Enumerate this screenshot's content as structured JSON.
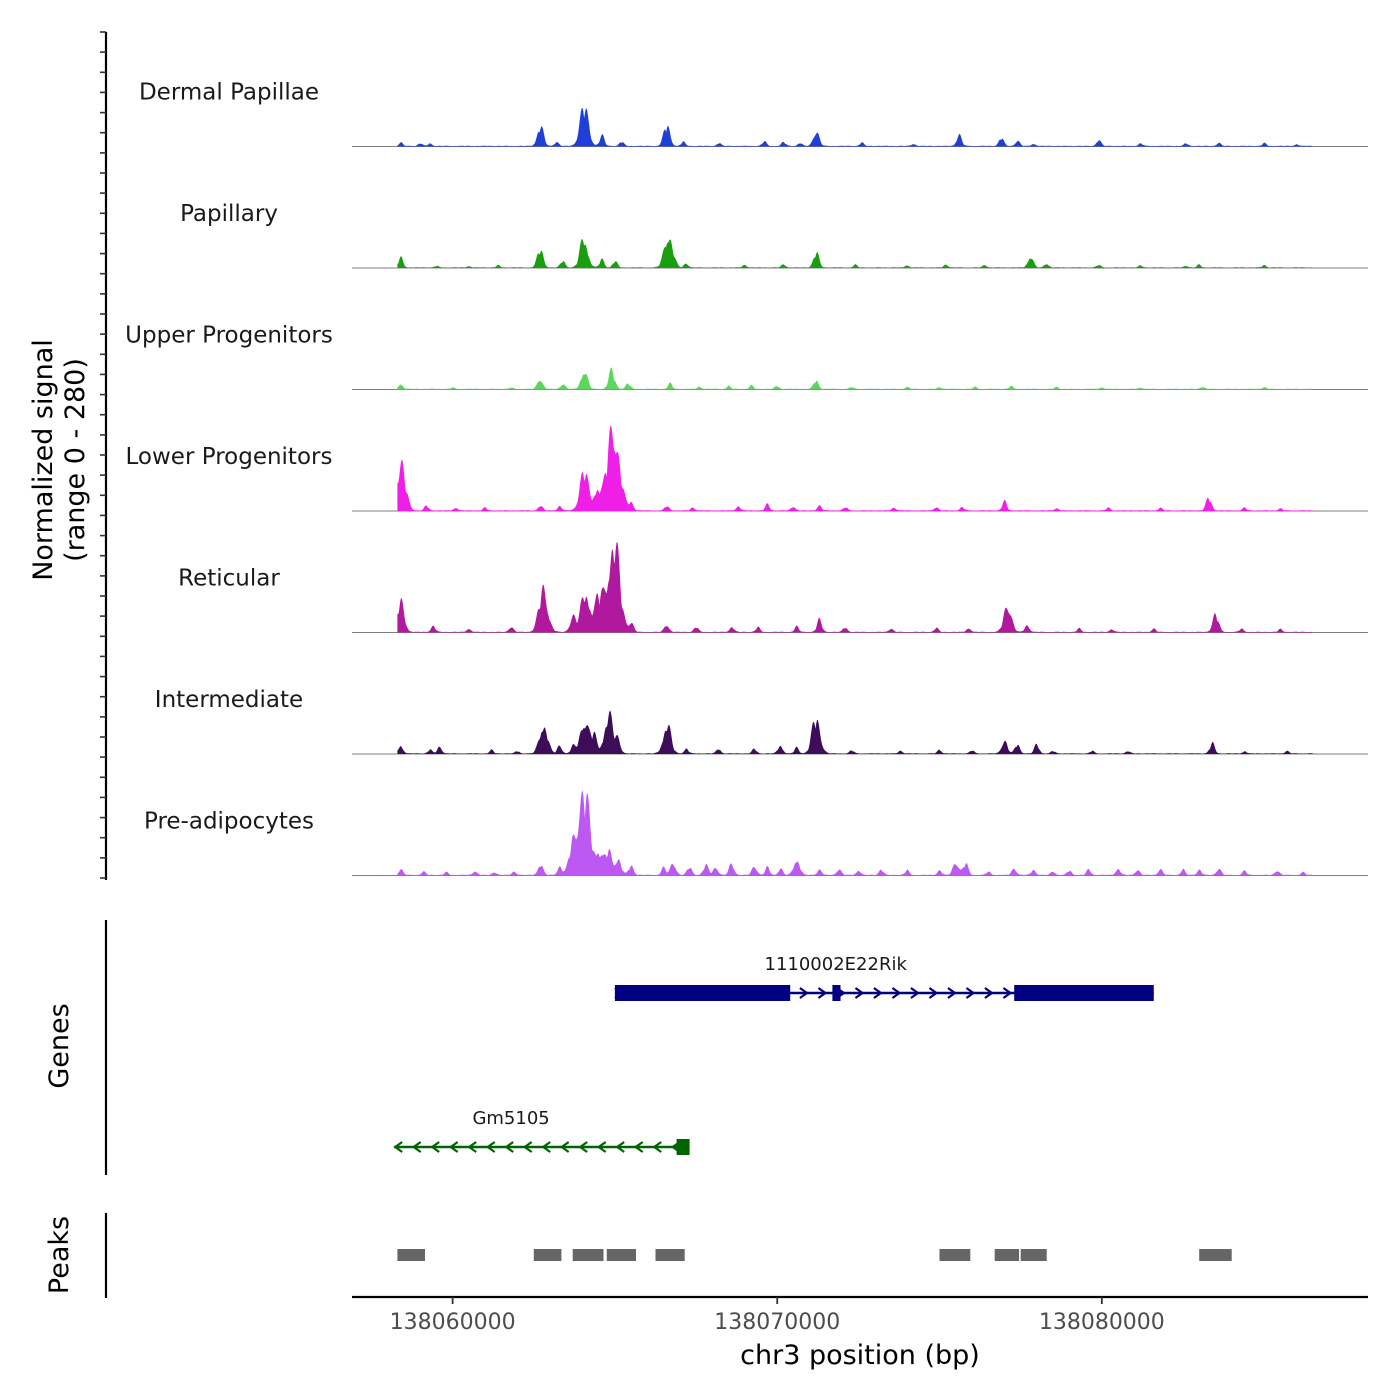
{
  "chart_data": {
    "type": "area",
    "title": "",
    "chromosome": "chr3",
    "xlabel": "chr3 position (bp)",
    "ylabel_line1": "Normalized signal",
    "ylabel_line2": "(range 0 - 280)",
    "ylim": [
      0,
      280
    ],
    "xlim": [
      138056900,
      138088200
    ],
    "x_ticks": [
      {
        "value": 138060000,
        "label": "138060000"
      },
      {
        "value": 138070000,
        "label": "138070000"
      },
      {
        "value": 138080000,
        "label": "138080000"
      }
    ],
    "track_range": [
      138058300,
      138086500
    ],
    "baseline": 2,
    "series": [
      {
        "name": "Dermal Papillae",
        "color": "#1f3fd6",
        "peaks": [
          [
            138058400,
            10
          ],
          [
            138059000,
            9
          ],
          [
            138059300,
            8
          ],
          [
            138062700,
            62
          ],
          [
            138063200,
            14
          ],
          [
            138064050,
            120
          ],
          [
            138064600,
            30
          ],
          [
            138065200,
            14
          ],
          [
            138066600,
            64
          ],
          [
            138067100,
            12
          ],
          [
            138068200,
            10
          ],
          [
            138069600,
            14
          ],
          [
            138070200,
            12
          ],
          [
            138070700,
            10
          ],
          [
            138071200,
            50
          ],
          [
            138072600,
            10
          ],
          [
            138074200,
            8
          ],
          [
            138075600,
            35
          ],
          [
            138076900,
            26
          ],
          [
            138077400,
            18
          ],
          [
            138077900,
            8
          ],
          [
            138079900,
            20
          ],
          [
            138081200,
            8
          ],
          [
            138082600,
            8
          ],
          [
            138083600,
            10
          ],
          [
            138085000,
            8
          ],
          [
            138086000,
            6
          ]
        ]
      },
      {
        "name": "Papillary",
        "color": "#1a9e10",
        "peaks": [
          [
            138058400,
            30
          ],
          [
            138059500,
            5
          ],
          [
            138060500,
            5
          ],
          [
            138061400,
            6
          ],
          [
            138062700,
            55
          ],
          [
            138063400,
            22
          ],
          [
            138064050,
            95
          ],
          [
            138064600,
            25
          ],
          [
            138065000,
            20
          ],
          [
            138066650,
            110
          ],
          [
            138067200,
            14
          ],
          [
            138069000,
            8
          ],
          [
            138070200,
            10
          ],
          [
            138071200,
            45
          ],
          [
            138072400,
            8
          ],
          [
            138074000,
            8
          ],
          [
            138075200,
            10
          ],
          [
            138076400,
            8
          ],
          [
            138077800,
            38
          ],
          [
            138078300,
            14
          ],
          [
            138079900,
            8
          ],
          [
            138081200,
            6
          ],
          [
            138082600,
            6
          ],
          [
            138083000,
            8
          ],
          [
            138085000,
            8
          ]
        ]
      },
      {
        "name": "Upper Progenitors",
        "color": "#5cd65c",
        "peaks": [
          [
            138058400,
            18
          ],
          [
            138060000,
            4
          ],
          [
            138061800,
            4
          ],
          [
            138062700,
            35
          ],
          [
            138063400,
            18
          ],
          [
            138064050,
            62
          ],
          [
            138064900,
            55
          ],
          [
            138065400,
            18
          ],
          [
            138066700,
            16
          ],
          [
            138067600,
            8
          ],
          [
            138068500,
            8
          ],
          [
            138069200,
            10
          ],
          [
            138070000,
            10
          ],
          [
            138071200,
            28
          ],
          [
            138072300,
            6
          ],
          [
            138074000,
            6
          ],
          [
            138075000,
            6
          ],
          [
            138076100,
            6
          ],
          [
            138077200,
            8
          ],
          [
            138078600,
            6
          ],
          [
            138080000,
            6
          ],
          [
            138081200,
            5
          ],
          [
            138083100,
            8
          ],
          [
            138085000,
            6
          ]
        ]
      },
      {
        "name": "Lower Progenitors",
        "color": "#f01fe8",
        "peaks": [
          [
            138058400,
            140
          ],
          [
            138059200,
            14
          ],
          [
            138060100,
            10
          ],
          [
            138061000,
            8
          ],
          [
            138062700,
            16
          ],
          [
            138063300,
            14
          ],
          [
            138064050,
            120
          ],
          [
            138064450,
            70
          ],
          [
            138064950,
            270
          ],
          [
            138065500,
            25
          ],
          [
            138066600,
            14
          ],
          [
            138067400,
            10
          ],
          [
            138068800,
            14
          ],
          [
            138069700,
            18
          ],
          [
            138070500,
            14
          ],
          [
            138071300,
            16
          ],
          [
            138072100,
            10
          ],
          [
            138073600,
            10
          ],
          [
            138074900,
            12
          ],
          [
            138075700,
            10
          ],
          [
            138077000,
            26
          ],
          [
            138078600,
            8
          ],
          [
            138080200,
            8
          ],
          [
            138081800,
            8
          ],
          [
            138083300,
            40
          ],
          [
            138084400,
            8
          ],
          [
            138085500,
            6
          ]
        ]
      },
      {
        "name": "Reticular",
        "color": "#b0189e",
        "peaks": [
          [
            138058400,
            90
          ],
          [
            138059400,
            20
          ],
          [
            138060500,
            12
          ],
          [
            138061800,
            18
          ],
          [
            138062800,
            130
          ],
          [
            138063700,
            50
          ],
          [
            138064100,
            130
          ],
          [
            138064500,
            100
          ],
          [
            138064950,
            290
          ],
          [
            138065500,
            30
          ],
          [
            138066600,
            25
          ],
          [
            138067500,
            16
          ],
          [
            138068600,
            18
          ],
          [
            138069400,
            14
          ],
          [
            138070600,
            16
          ],
          [
            138071300,
            35
          ],
          [
            138072100,
            16
          ],
          [
            138073500,
            12
          ],
          [
            138074900,
            12
          ],
          [
            138075900,
            14
          ],
          [
            138077100,
            90
          ],
          [
            138077700,
            24
          ],
          [
            138079300,
            10
          ],
          [
            138080300,
            10
          ],
          [
            138081600,
            10
          ],
          [
            138083500,
            55
          ],
          [
            138084300,
            10
          ],
          [
            138085500,
            8
          ]
        ]
      },
      {
        "name": "Intermediate",
        "color": "#3d0d59",
        "peaks": [
          [
            138058400,
            28
          ],
          [
            138059300,
            12
          ],
          [
            138059600,
            22
          ],
          [
            138061200,
            10
          ],
          [
            138062000,
            8
          ],
          [
            138062800,
            100
          ],
          [
            138063300,
            26
          ],
          [
            138063700,
            20
          ],
          [
            138064050,
            110
          ],
          [
            138064350,
            55
          ],
          [
            138064800,
            120
          ],
          [
            138065100,
            40
          ],
          [
            138066600,
            95
          ],
          [
            138067200,
            16
          ],
          [
            138068200,
            16
          ],
          [
            138069300,
            14
          ],
          [
            138070100,
            28
          ],
          [
            138070600,
            18
          ],
          [
            138071200,
            110
          ],
          [
            138072300,
            10
          ],
          [
            138073800,
            10
          ],
          [
            138075000,
            12
          ],
          [
            138076000,
            10
          ],
          [
            138077000,
            45
          ],
          [
            138077400,
            30
          ],
          [
            138078000,
            28
          ],
          [
            138078500,
            8
          ],
          [
            138079700,
            8
          ],
          [
            138080800,
            8
          ],
          [
            138083400,
            30
          ],
          [
            138084400,
            8
          ],
          [
            138085700,
            8
          ]
        ]
      },
      {
        "name": "Pre-adipocytes",
        "color": "#bd58f2",
        "peaks": [
          [
            138058400,
            18
          ],
          [
            138059100,
            10
          ],
          [
            138059800,
            8
          ],
          [
            138060700,
            14
          ],
          [
            138061300,
            10
          ],
          [
            138061900,
            12
          ],
          [
            138062700,
            35
          ],
          [
            138063300,
            28
          ],
          [
            138063700,
            85
          ],
          [
            138064050,
            250
          ],
          [
            138064500,
            70
          ],
          [
            138064800,
            75
          ],
          [
            138065100,
            55
          ],
          [
            138065500,
            30
          ],
          [
            138066500,
            22
          ],
          [
            138066800,
            40
          ],
          [
            138067300,
            25
          ],
          [
            138067800,
            30
          ],
          [
            138068100,
            28
          ],
          [
            138068600,
            35
          ],
          [
            138069300,
            30
          ],
          [
            138069700,
            22
          ],
          [
            138070100,
            20
          ],
          [
            138070600,
            55
          ],
          [
            138071300,
            18
          ],
          [
            138071900,
            20
          ],
          [
            138072500,
            16
          ],
          [
            138073200,
            18
          ],
          [
            138074000,
            14
          ],
          [
            138075000,
            16
          ],
          [
            138075500,
            45
          ],
          [
            138075800,
            35
          ],
          [
            138076500,
            10
          ],
          [
            138077300,
            22
          ],
          [
            138077900,
            18
          ],
          [
            138078500,
            12
          ],
          [
            138079000,
            14
          ],
          [
            138079600,
            16
          ],
          [
            138080500,
            22
          ],
          [
            138081100,
            18
          ],
          [
            138081800,
            18
          ],
          [
            138082500,
            16
          ],
          [
            138083000,
            18
          ],
          [
            138083600,
            22
          ],
          [
            138084400,
            12
          ],
          [
            138085400,
            16
          ],
          [
            138086200,
            8
          ]
        ]
      }
    ],
    "genes": [
      {
        "name": "1110002E22Rik",
        "color": "#000080",
        "strand": "+",
        "start": 138065000,
        "end": 138081600,
        "row": 0,
        "exons": [
          [
            138065000,
            138070400
          ],
          [
            138071700,
            138071950
          ],
          [
            138077300,
            138081600
          ]
        ]
      },
      {
        "name": "Gm5105",
        "color": "#006400",
        "strand": "-",
        "start": 138058200,
        "end": 138067300,
        "row": 1,
        "exons": [
          [
            138066900,
            138067300
          ]
        ]
      }
    ],
    "peaks_track": {
      "color": "#666666",
      "intervals": [
        [
          138058300,
          138059150
        ],
        [
          138062500,
          138063350
        ],
        [
          138063700,
          138064650
        ],
        [
          138064750,
          138065650
        ],
        [
          138066250,
          138067150
        ],
        [
          138075000,
          138075950
        ],
        [
          138076700,
          138077450
        ],
        [
          138077500,
          138078300
        ],
        [
          138083000,
          138084000
        ]
      ]
    },
    "panel_labels": {
      "genes": "Genes",
      "peaks": "Peaks"
    }
  }
}
